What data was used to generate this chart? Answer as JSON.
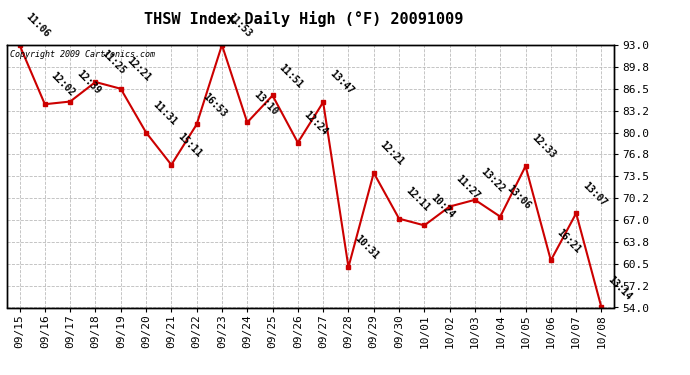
{
  "title": "THSW Index Daily High (°F) 20091009",
  "copyright": "Copyright 2009 Cartronics.com",
  "dates": [
    "09/15",
    "09/16",
    "09/17",
    "09/18",
    "09/19",
    "09/20",
    "09/21",
    "09/22",
    "09/23",
    "09/24",
    "09/25",
    "09/26",
    "09/27",
    "09/28",
    "09/29",
    "09/30",
    "10/01",
    "10/02",
    "10/03",
    "10/04",
    "10/05",
    "10/06",
    "10/07",
    "10/08"
  ],
  "values": [
    93.0,
    84.2,
    84.6,
    87.5,
    86.5,
    80.0,
    75.2,
    81.2,
    93.0,
    81.5,
    85.5,
    78.5,
    84.5,
    60.0,
    74.0,
    67.2,
    66.2,
    69.0,
    70.0,
    67.5,
    75.0,
    61.0,
    68.0,
    54.0
  ],
  "annotations": [
    "11:06",
    "12:02",
    "12:39",
    "11:25",
    "12:21",
    "11:31",
    "15:11",
    "16:53",
    "11:53",
    "13:10",
    "11:51",
    "12:24",
    "13:47",
    "10:31",
    "12:21",
    "12:11",
    "10:24",
    "11:27",
    "13:22",
    "13:06",
    "12:33",
    "16:21",
    "13:07",
    "13:14"
  ],
  "ylim": [
    54.0,
    93.0
  ],
  "yticks": [
    54.0,
    57.2,
    60.5,
    63.8,
    67.0,
    70.2,
    73.5,
    76.8,
    80.0,
    83.2,
    86.5,
    89.8,
    93.0
  ],
  "line_color": "#cc0000",
  "marker_color": "#cc0000",
  "bg_color": "#ffffff",
  "grid_color": "#bbbbbb",
  "title_fontsize": 11,
  "annotation_fontsize": 7,
  "tick_fontsize": 8
}
